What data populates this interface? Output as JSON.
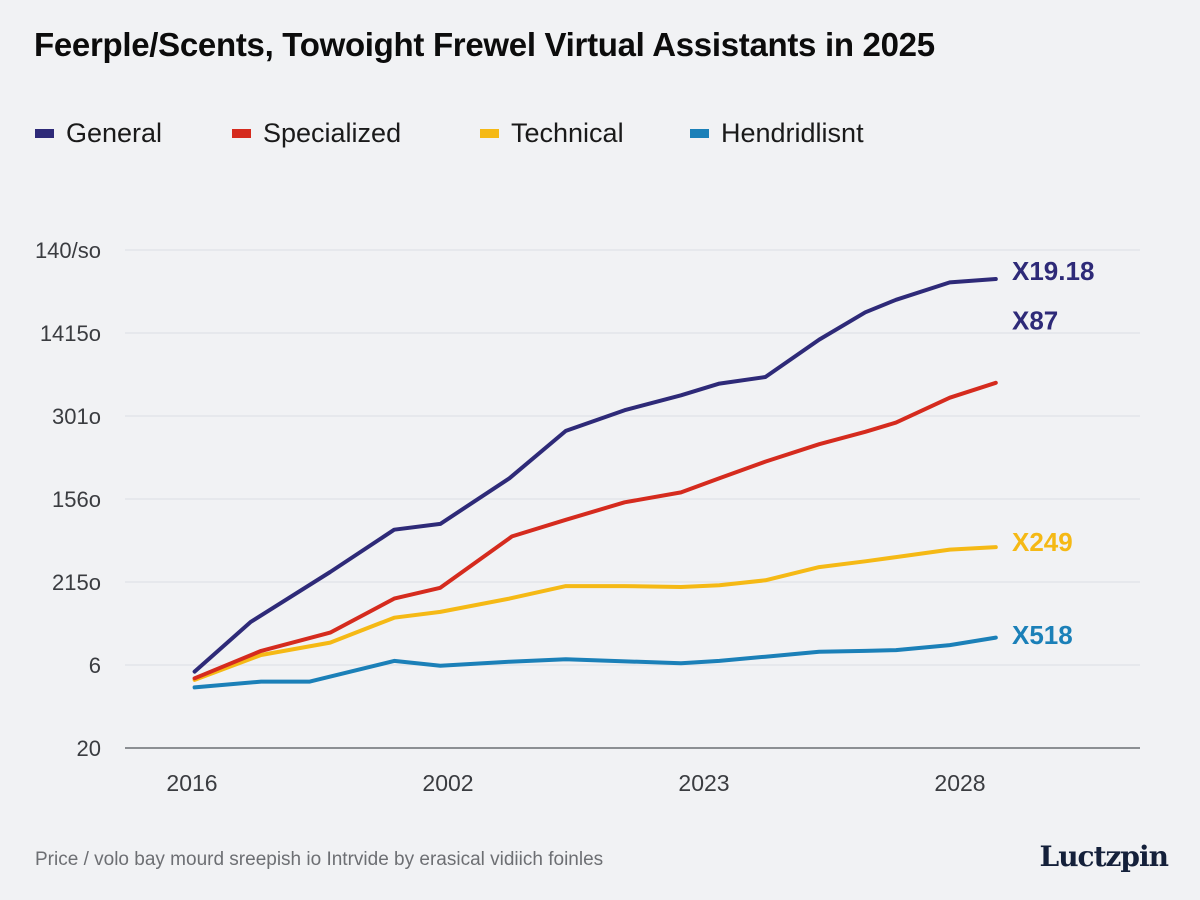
{
  "chart_data": {
    "type": "line",
    "title": "Feerple/Scents, Towoight Frewel Virtual Assistants in 2025",
    "xlabel": "",
    "ylabel": "",
    "x_ticks": [
      {
        "x": 0,
        "label": "2016"
      },
      {
        "x": 1,
        "label": "2002"
      },
      {
        "x": 2,
        "label": "2023"
      },
      {
        "x": 3,
        "label": "2028"
      }
    ],
    "y_ticks": [
      {
        "y": 0,
        "label": "20"
      },
      {
        "y": 1,
        "label": "6"
      },
      {
        "y": 2,
        "label": "215o"
      },
      {
        "y": 3,
        "label": "156o"
      },
      {
        "y": 4,
        "label": "301o"
      },
      {
        "y": 5,
        "label": "1415o"
      },
      {
        "y": 6,
        "label": "140/so"
      }
    ],
    "xlim": [
      -0.26,
      3.7
    ],
    "ylim": [
      0,
      6
    ],
    "grid": true,
    "legend_position": "top-left",
    "series": [
      {
        "name": "General",
        "color": "#2e2a78",
        "points": [
          [
            0.01,
            0.92
          ],
          [
            0.23,
            1.52
          ],
          [
            0.54,
            2.12
          ],
          [
            0.79,
            2.63
          ],
          [
            0.97,
            2.7
          ],
          [
            1.24,
            3.25
          ],
          [
            1.46,
            3.82
          ],
          [
            1.69,
            4.07
          ],
          [
            1.91,
            4.25
          ],
          [
            2.06,
            4.39
          ],
          [
            2.24,
            4.47
          ],
          [
            2.45,
            4.92
          ],
          [
            2.63,
            5.25
          ],
          [
            2.75,
            5.4
          ],
          [
            2.96,
            5.61
          ],
          [
            3.14,
            5.65
          ]
        ],
        "end_labels": [
          {
            "text": "X19.18",
            "y": 5.75
          },
          {
            "text": "X87",
            "y": 5.15
          }
        ]
      },
      {
        "name": "Specialized",
        "color": "#d52b1e",
        "points": [
          [
            0.01,
            0.84
          ],
          [
            0.27,
            1.17
          ],
          [
            0.54,
            1.39
          ],
          [
            0.79,
            1.8
          ],
          [
            0.97,
            1.93
          ],
          [
            1.25,
            2.55
          ],
          [
            1.46,
            2.75
          ],
          [
            1.69,
            2.96
          ],
          [
            1.91,
            3.08
          ],
          [
            2.06,
            3.25
          ],
          [
            2.24,
            3.45
          ],
          [
            2.45,
            3.66
          ],
          [
            2.63,
            3.81
          ],
          [
            2.75,
            3.92
          ],
          [
            2.96,
            4.22
          ],
          [
            3.14,
            4.4
          ]
        ],
        "end_labels": []
      },
      {
        "name": "Technical",
        "color": "#f5b915",
        "points": [
          [
            0.01,
            0.82
          ],
          [
            0.27,
            1.12
          ],
          [
            0.54,
            1.27
          ],
          [
            0.79,
            1.57
          ],
          [
            0.97,
            1.64
          ],
          [
            1.24,
            1.8
          ],
          [
            1.46,
            1.95
          ],
          [
            1.69,
            1.95
          ],
          [
            1.91,
            1.94
          ],
          [
            2.06,
            1.96
          ],
          [
            2.24,
            2.02
          ],
          [
            2.45,
            2.18
          ],
          [
            2.63,
            2.25
          ],
          [
            2.75,
            2.3
          ],
          [
            2.96,
            2.39
          ],
          [
            3.14,
            2.42
          ]
        ],
        "end_labels": [
          {
            "text": "X249",
            "y": 2.48
          }
        ]
      },
      {
        "name": "Hendridlisnt",
        "color": "#1b80b8",
        "points": [
          [
            0.01,
            0.73
          ],
          [
            0.27,
            0.8
          ],
          [
            0.46,
            0.8
          ],
          [
            0.79,
            1.05
          ],
          [
            0.97,
            0.99
          ],
          [
            1.24,
            1.04
          ],
          [
            1.46,
            1.07
          ],
          [
            1.91,
            1.02
          ],
          [
            2.06,
            1.05
          ],
          [
            2.24,
            1.1
          ],
          [
            2.45,
            1.16
          ],
          [
            2.63,
            1.17
          ],
          [
            2.75,
            1.18
          ],
          [
            2.96,
            1.24
          ],
          [
            3.14,
            1.33
          ]
        ],
        "end_labels": [
          {
            "text": "X518",
            "y": 1.36
          }
        ]
      }
    ]
  },
  "footer": {
    "note": "Price / volo bay mourd sreepish io Intrvide by erasical vidiich foinles",
    "logo": "Luctzpin"
  }
}
